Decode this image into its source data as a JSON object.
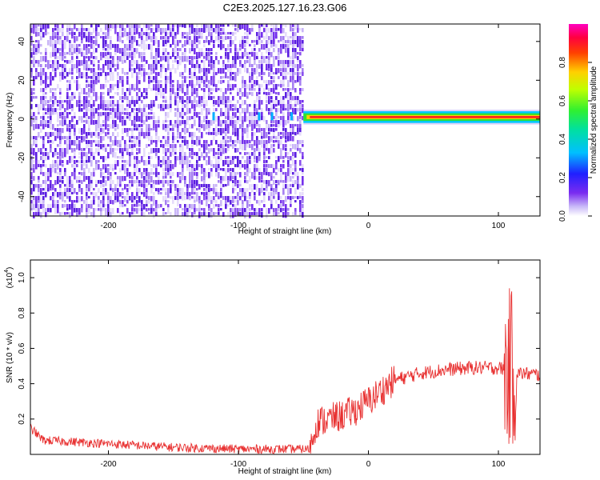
{
  "title": "C2E3.2025.127.16.23.G06",
  "chart_data": [
    {
      "type": "heatmap",
      "xlabel": "Height of straight line (km)",
      "ylabel": "Frequency (Hz)",
      "xlim": [
        -260,
        132
      ],
      "ylim": [
        -50,
        49
      ],
      "xticks": [
        "-200",
        "-100",
        "0",
        "100"
      ],
      "xtick_values": [
        -200,
        -100,
        0,
        100
      ],
      "yticks": [
        "-40",
        "-20",
        "0",
        "20",
        "40"
      ],
      "ytick_values": [
        -40,
        -20,
        0,
        20,
        40
      ],
      "noise_region_x": [
        -260,
        -50
      ],
      "signal_band": {
        "x": [
          -50,
          132
        ],
        "freq_center": 1,
        "freq_halfwidth": 3
      },
      "colorbar": {
        "label": "Normalized spectral amplitude",
        "range": [
          0,
          1
        ],
        "ticks": [
          "0.0",
          "0.2",
          "0.4",
          "0.6",
          "0.8"
        ],
        "tick_values": [
          0.0,
          0.2,
          0.4,
          0.6,
          0.8
        ]
      }
    },
    {
      "type": "line",
      "xlabel": "Height of straight line (km)",
      "ylabel": "SNR (10 * v/v)",
      "multiplier_label": "(x10",
      "multiplier_exp": "4",
      "multiplier_close": ")",
      "xlim": [
        -260,
        132
      ],
      "ylim": [
        0,
        1.1
      ],
      "xticks": [
        "-200",
        "-100",
        "0",
        "100"
      ],
      "xtick_values": [
        -200,
        -100,
        0,
        100
      ],
      "yticks": [
        "0.2",
        "0.4",
        "0.6",
        "0.8",
        "1.0"
      ],
      "ytick_values": [
        0.2,
        0.4,
        0.6,
        0.8,
        1.0
      ],
      "color": "#e83030",
      "series_trend": {
        "x": [
          -260,
          -250,
          -200,
          -150,
          -100,
          -60,
          -45,
          -40,
          -30,
          -20,
          -10,
          0,
          20,
          40,
          60,
          80,
          100,
          106,
          110,
          115,
          132
        ],
        "y": [
          0.15,
          0.08,
          0.06,
          0.04,
          0.03,
          0.03,
          0.03,
          0.18,
          0.2,
          0.22,
          0.25,
          0.3,
          0.42,
          0.46,
          0.48,
          0.49,
          0.49,
          0.48,
          0.5,
          0.46,
          0.45
        ]
      }
    }
  ]
}
